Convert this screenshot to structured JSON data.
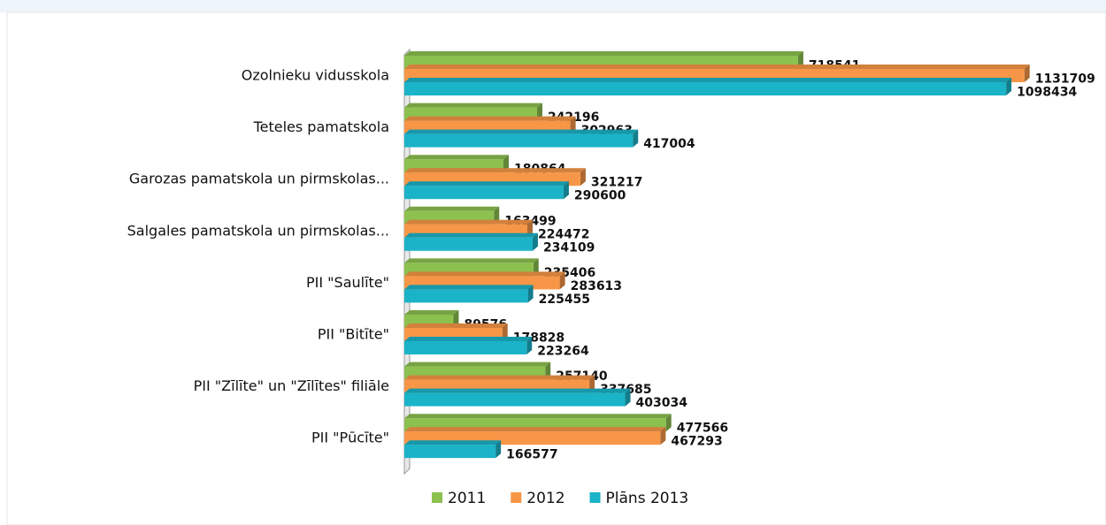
{
  "chart_data": {
    "type": "bar",
    "orientation": "horizontal",
    "categories": [
      "Ozolnieku vidusskola",
      "Teteles pamatskola",
      "Garozas pamatskola un pirmskolas...",
      "Salgales pamatskola un pirmskolas...",
      "PII \"Saulīte\"",
      "PII \"Bitīte\"",
      "PII \"Zīlīte\" un \"Zīlītes\" filiāle",
      "PII \"Pūcīte\""
    ],
    "series": [
      {
        "name": "2011",
        "color": "#8cc04f",
        "values": [
          718541,
          242196,
          180864,
          163499,
          235406,
          89576,
          257140,
          477566
        ]
      },
      {
        "name": "2012",
        "color": "#f79646",
        "values": [
          1131709,
          302963,
          321217,
          224472,
          283613,
          178828,
          337685,
          467293
        ]
      },
      {
        "name": "Plāns 2013",
        "color": "#1bb3c8",
        "values": [
          1098434,
          417004,
          290600,
          234109,
          225455,
          223264,
          403034,
          166577
        ]
      }
    ],
    "xlim": [
      0,
      1200000
    ],
    "legend": "bottom"
  }
}
